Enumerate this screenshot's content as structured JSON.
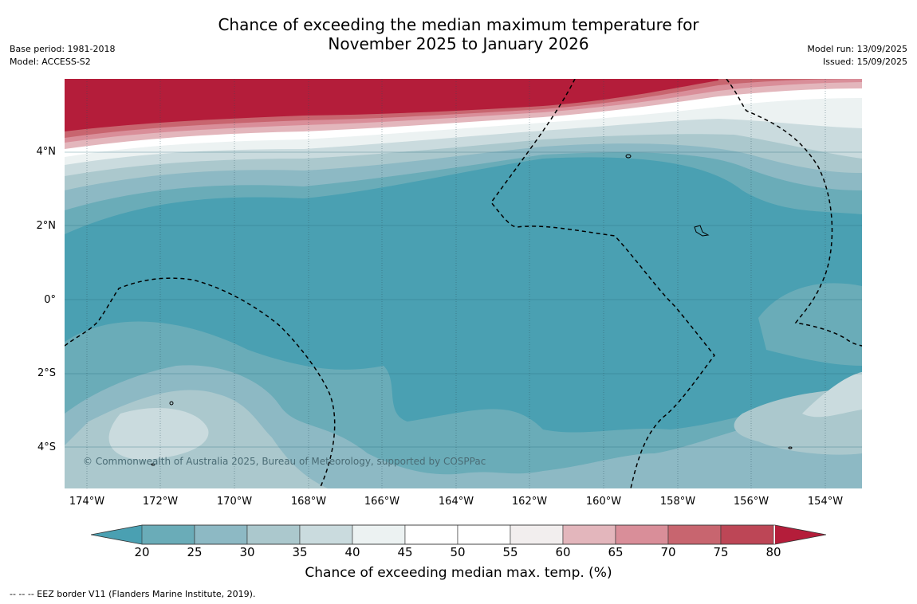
{
  "title_line1": "Chance of exceeding the median maximum temperature for",
  "title_line2": "November 2025 to January 2026",
  "meta_left": {
    "base_period": "Base period: 1981-2018",
    "model": "Model: ACCESS-S2"
  },
  "meta_right": {
    "model_run": "Model run: 13/09/2025",
    "issued": "Issued: 15/09/2025"
  },
  "map": {
    "lat_labels": [
      "4°N",
      "2°N",
      "0°",
      "2°S",
      "4°S"
    ],
    "lon_labels": [
      "174°W",
      "172°W",
      "170°W",
      "168°W",
      "166°W",
      "164°W",
      "162°W",
      "160°W",
      "158°W",
      "156°W",
      "154°W"
    ],
    "copyright": "© Commonwealth of Australia 2025, Bureau of Meteorology, supported by COSPPac"
  },
  "colorbar": {
    "ticks": [
      "20",
      "25",
      "30",
      "35",
      "40",
      "45",
      "50",
      "55",
      "60",
      "65",
      "70",
      "75",
      "80"
    ],
    "colors": [
      "#6aacb8",
      "#8db9c4",
      "#abc8cd",
      "#cadbde",
      "#ecf2f2",
      "#ffffff",
      "#ffffff",
      "#f2eeee",
      "#e3b6bc",
      "#d98e99",
      "#c8656f",
      "#bd4656"
    ],
    "under_color": "#4aa0b2",
    "over_color": "#b41d3a",
    "label": "Chance of exceeding median max. temp. (%)"
  },
  "footer": "--  --  -- EEZ border V11 (Flanders Marine Institute, 2019)."
}
